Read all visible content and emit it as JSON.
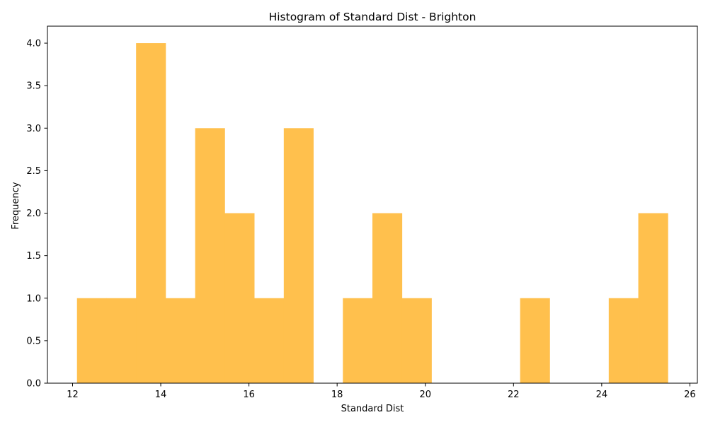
{
  "chart_data": {
    "type": "bar",
    "title": "Histogram of Standard Dist - Brighton",
    "xlabel": "Standard Dist",
    "ylabel": "Frequency",
    "xlim": [
      11.43,
      26.17
    ],
    "ylim": [
      0,
      4.2
    ],
    "x_ticks": [
      12,
      14,
      16,
      18,
      20,
      22,
      24,
      26
    ],
    "x_tick_labels": [
      "12",
      "14",
      "16",
      "18",
      "20",
      "22",
      "24",
      "26"
    ],
    "y_ticks": [
      0,
      0.5,
      1,
      1.5,
      2,
      2.5,
      3,
      3.5,
      4
    ],
    "y_tick_labels": [
      "0.0",
      "0.5",
      "1.0",
      "1.5",
      "2.0",
      "2.5",
      "3.0",
      "3.5",
      "4.0"
    ],
    "bar_color": "#ffc04d",
    "grid": false,
    "bins": [
      {
        "start": 12.1,
        "end": 12.77,
        "count": 1
      },
      {
        "start": 12.77,
        "end": 13.44,
        "count": 1
      },
      {
        "start": 13.44,
        "end": 14.11,
        "count": 4
      },
      {
        "start": 14.11,
        "end": 14.78,
        "count": 1
      },
      {
        "start": 14.78,
        "end": 15.45,
        "count": 3
      },
      {
        "start": 15.45,
        "end": 16.12,
        "count": 2
      },
      {
        "start": 16.12,
        "end": 16.79,
        "count": 1
      },
      {
        "start": 16.79,
        "end": 17.46,
        "count": 3
      },
      {
        "start": 17.46,
        "end": 18.13,
        "count": 0
      },
      {
        "start": 18.13,
        "end": 18.8,
        "count": 1
      },
      {
        "start": 18.8,
        "end": 19.47,
        "count": 2
      },
      {
        "start": 19.47,
        "end": 20.14,
        "count": 1
      },
      {
        "start": 20.14,
        "end": 20.81,
        "count": 0
      },
      {
        "start": 20.81,
        "end": 21.48,
        "count": 0
      },
      {
        "start": 21.48,
        "end": 22.15,
        "count": 0
      },
      {
        "start": 22.15,
        "end": 22.82,
        "count": 1
      },
      {
        "start": 22.82,
        "end": 23.49,
        "count": 0
      },
      {
        "start": 23.49,
        "end": 24.16,
        "count": 0
      },
      {
        "start": 24.16,
        "end": 24.83,
        "count": 1
      },
      {
        "start": 24.83,
        "end": 25.5,
        "count": 2
      }
    ]
  }
}
